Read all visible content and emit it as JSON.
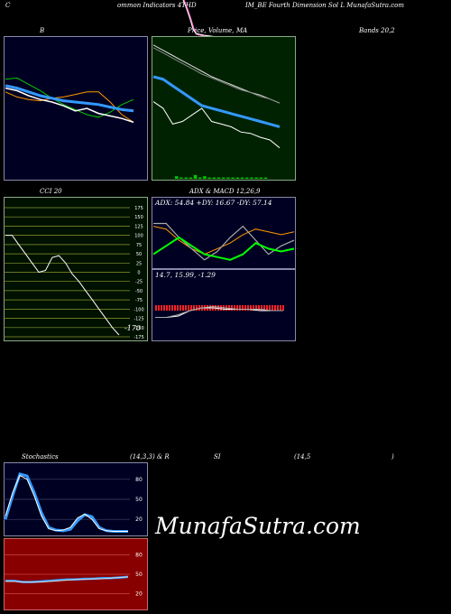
{
  "header": {
    "left": "C",
    "mid": "ommon  Indicators 4THD",
    "right": "IM_BE Fourth Dimension  Sol L MunafaSutra.com"
  },
  "titles": {
    "bollinger": "B",
    "price": "Price,",
    "volume": "Volume,",
    "ma": "MA",
    "bands": "Bands 20,2",
    "cci": "CCI 20",
    "adx": "ADX  & MACD 12,26,9",
    "stochastics": "Stochastics",
    "stoch_params": "(14,3,3) & R",
    "rsi": "SI",
    "rsi_params": "(14,5",
    "rsi_close": ")"
  },
  "adx_readout": "ADX: 54.84  +DY: 16.67 -DY: 57.14",
  "macd_readout": "14.7,  15.99,  -1.29",
  "cci_value": "-170",
  "watermark": "MunafaSutra.com",
  "colors": {
    "background": "#000000",
    "bollinger_bg": "#000022",
    "ma_bg": "#002200",
    "cci_bg": "#001100",
    "macd_bg": "#000022",
    "rsi_bg": "#880000",
    "price": "#ffffff",
    "upper_band": "#00cc00",
    "lower_band": "#ff9900",
    "middle_band": "#3399ff",
    "volume": "#00cc00",
    "adx_line": "#ff9900",
    "plus_di": "#00ff00",
    "minus_di": "#ffffff",
    "macd_hist": "#ff2222"
  },
  "chart_data": [
    {
      "type": "line",
      "name": "bollinger",
      "series": [
        {
          "values": [
            73,
            74,
            69,
            64,
            58,
            53,
            49,
            45,
            43,
            47,
            53,
            57
          ]
        },
        {
          "values": [
            68,
            66,
            63,
            60,
            58,
            56,
            55,
            54,
            53,
            51,
            49,
            48
          ]
        },
        {
          "values": [
            63,
            59,
            57,
            56,
            58,
            59,
            61,
            63,
            63,
            55,
            45,
            39
          ]
        },
        {
          "values": [
            66,
            64,
            60,
            57,
            55,
            52,
            48,
            50,
            46,
            44,
            42,
            39
          ]
        }
      ]
    },
    {
      "type": "line",
      "name": "price-volume-ma",
      "series": [
        {
          "values": [
            96,
            92,
            88,
            84,
            80,
            76,
            72,
            69,
            66,
            63,
            60,
            58,
            55,
            52
          ]
        },
        {
          "values": [
            94,
            90,
            86,
            82,
            78,
            74,
            71,
            68,
            65,
            62,
            60,
            57,
            55,
            52
          ]
        },
        {
          "values": [
            72,
            70,
            65,
            60,
            55,
            50,
            48,
            46,
            44,
            42,
            40,
            38,
            36,
            34
          ]
        },
        {
          "values": [
            53,
            48,
            36,
            38,
            43,
            48,
            38,
            36,
            34,
            30,
            29,
            26,
            24,
            18
          ]
        }
      ],
      "volume": [
        2,
        1,
        1,
        1,
        3,
        1,
        2,
        1,
        1,
        1,
        1,
        1,
        1,
        1,
        1,
        1,
        1,
        1,
        1,
        1
      ]
    },
    {
      "type": "line",
      "name": "cci",
      "ylim": [
        -175,
        175
      ],
      "ticks": [
        175,
        150,
        125,
        100,
        75,
        50,
        25,
        0,
        -25,
        -50,
        -75,
        -100,
        -125,
        -150,
        -175
      ],
      "values": [
        100,
        100,
        75,
        50,
        25,
        0,
        5,
        40,
        45,
        25,
        -5,
        -25,
        -50,
        -75,
        -100,
        -125,
        -150,
        -170
      ]
    },
    {
      "type": "line",
      "name": "adx",
      "series": [
        {
          "values": [
            70,
            65,
            45,
            30,
            20,
            30,
            40,
            55,
            65,
            60,
            55,
            60
          ]
        },
        {
          "values": [
            75,
            75,
            50,
            30,
            10,
            25,
            50,
            70,
            45,
            20,
            35,
            45
          ]
        },
        {
          "values": [
            20,
            35,
            50,
            35,
            20,
            15,
            10,
            20,
            40,
            30,
            25,
            30
          ]
        }
      ]
    },
    {
      "type": "line",
      "name": "macd",
      "series": [
        {
          "values": [
            3,
            3,
            4,
            8,
            10,
            10,
            9,
            9,
            9,
            8,
            8,
            8
          ]
        },
        {
          "values": [
            3,
            3,
            5,
            8,
            10,
            11,
            10,
            9,
            9,
            9,
            8,
            8
          ]
        }
      ],
      "hist_count": 48
    },
    {
      "type": "line",
      "name": "stochastics",
      "ylim": [
        0,
        100
      ],
      "ticks": [
        80,
        50,
        20
      ],
      "series": [
        {
          "values": [
            20,
            55,
            88,
            85,
            60,
            30,
            8,
            4,
            3,
            5,
            18,
            27,
            24,
            8,
            3,
            2,
            2,
            2
          ]
        },
        {
          "values": [
            25,
            60,
            86,
            80,
            55,
            25,
            6,
            3,
            4,
            8,
            22,
            28,
            20,
            6,
            3,
            2,
            2,
            2
          ]
        }
      ]
    },
    {
      "type": "line",
      "name": "rsi",
      "ylim": [
        0,
        100
      ],
      "ticks": [
        80,
        50,
        20
      ],
      "series": [
        {
          "values": [
            40,
            40,
            38,
            38,
            39,
            40,
            41,
            42,
            42,
            43,
            43,
            44,
            44,
            45,
            46
          ]
        },
        {
          "values": [
            39,
            39,
            38,
            38,
            38,
            39,
            40,
            41,
            42,
            42,
            43,
            43,
            44,
            45,
            46
          ]
        }
      ]
    }
  ]
}
